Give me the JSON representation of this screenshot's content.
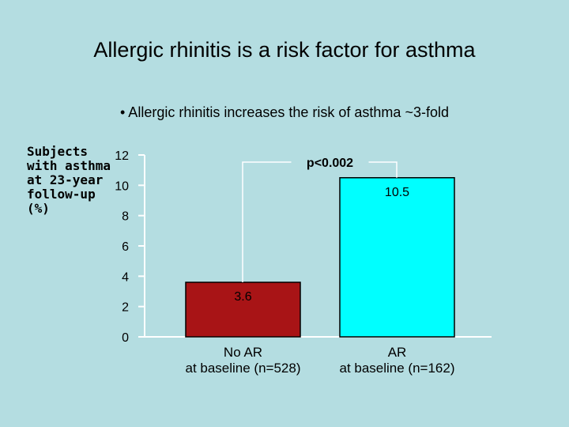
{
  "slide": {
    "title": "Allergic rhinitis is a risk factor for asthma",
    "subtitle": "• Allergic rhinitis increases the risk of asthma ~3-fold"
  },
  "chart_data": {
    "type": "bar",
    "ylabel": "Subjects\nwith asthma\nat 23-year\nfollow-up\n(%)",
    "ylim": [
      0,
      12
    ],
    "yticks": [
      0,
      2,
      4,
      6,
      8,
      10,
      12
    ],
    "categories": [
      "No AR\nat baseline (n=528)",
      "AR\nat baseline (n=162)"
    ],
    "values": [
      3.6,
      10.5
    ],
    "value_labels": [
      "3.6",
      "10.5"
    ],
    "colors": [
      "#a81416",
      "#00ffff"
    ],
    "annotation": "p<0.002",
    "grid": false,
    "legend": "none"
  }
}
